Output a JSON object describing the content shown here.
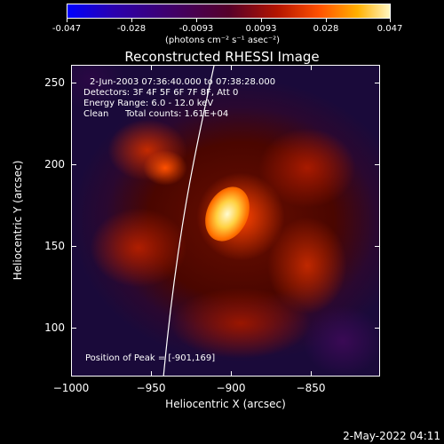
{
  "colorbar": {
    "tick_labels": [
      "-0.047",
      "-0.028",
      "-0.0093",
      "0.0093",
      "0.028",
      "0.047"
    ],
    "units": "(photons cm⁻² s⁻¹ asec⁻²)"
  },
  "image": {
    "title": "Reconstructed RHESSI Image",
    "time_range": "2-Jun-2003 07:36:40.000 to 07:38:28.000",
    "detectors": "Detectors: 3F 4F 5F 6F 7F 8F, Att 0",
    "energy_range": "Energy Range: 6.0 - 12.0 keV",
    "clean_label": "Clean",
    "total_counts": "Total counts: 1.61E+04",
    "peak_position": "Position of Peak = [-901,169]"
  },
  "axes": {
    "xlabel": "Heliocentric X (arcsec)",
    "ylabel": "Heliocentric Y (arcsec)",
    "x_ticks": [
      "−1000",
      "−950",
      "−900",
      "−850"
    ],
    "y_ticks": [
      "250",
      "200",
      "150",
      "100"
    ]
  },
  "footer": {
    "timestamp": "2-May-2022 04:11"
  },
  "colors": {
    "background": "#000000",
    "peak": "#fff7a0",
    "hot": "#ff5a00",
    "mid": "#8a1800",
    "cool": "#2a0a44"
  }
}
